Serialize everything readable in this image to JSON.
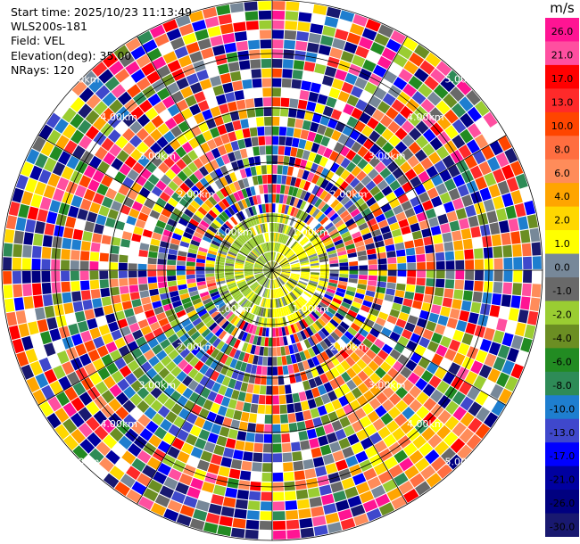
{
  "info": {
    "start_time": "Start time: 2025/10/23 11:13:49",
    "instrument": "WLS200s-181",
    "field": "Field: VEL",
    "elevation": "Elevation(deg): 35.00",
    "nrays": "NRays: 120"
  },
  "chart_data": {
    "type": "heatmap",
    "projection": "polar-ppi",
    "nrays": 120,
    "ring_labels": [
      "1.00km",
      "2.00km",
      "3.00km",
      "4.00km",
      "5.00km"
    ],
    "colorbar": {
      "unit": "m/s",
      "ticks": [
        "26.0",
        "21.0",
        "17.0",
        "13.0",
        "10.0",
        "8.0",
        "6.0",
        "4.0",
        "2.0",
        "1.0",
        "0.0",
        "-1.0",
        "-2.0",
        "-4.0",
        "-6.0",
        "-8.0",
        "-10.0",
        "-13.0",
        "-17.0",
        "-21.0",
        "-26.0",
        "-30.0"
      ],
      "colors": [
        "#ff1493",
        "#ff4fa0",
        "#ff0000",
        "#ff2a2a",
        "#ff4500",
        "#ff6e40",
        "#ff8c5a",
        "#ffa500",
        "#ffd700",
        "#ffff00",
        "#778899",
        "#696969",
        "#9acd32",
        "#6b8e23",
        "#228b22",
        "#2e8b57",
        "#1e7ecf",
        "#3f48cc",
        "#0000ff",
        "#0000a0",
        "#000080",
        "#191970"
      ]
    }
  }
}
